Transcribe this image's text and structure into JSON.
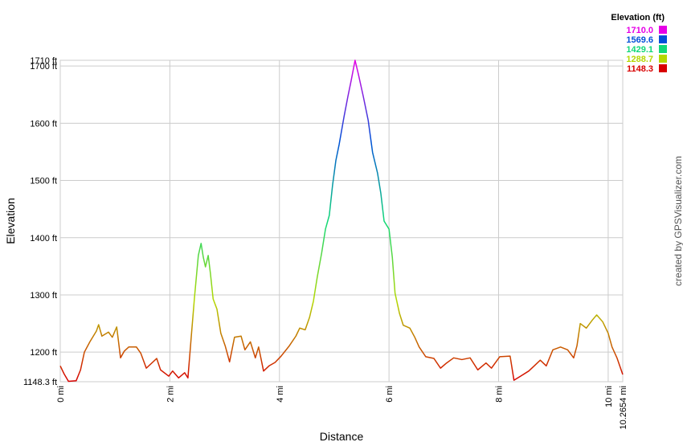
{
  "chart_data": {
    "type": "line",
    "x_label": "Distance",
    "y_label": "Elevation",
    "credit": "created by GPSVisualizer.com",
    "legend_title": "Elevation (ft)",
    "color_scale": [
      {
        "value": 1710.0,
        "label": "1710.0",
        "color": "#e600e6"
      },
      {
        "value": 1569.6,
        "label": "1569.6",
        "color": "#0050d8"
      },
      {
        "value": 1429.1,
        "label": "1429.1",
        "color": "#10d878"
      },
      {
        "value": 1288.7,
        "label": "1288.7",
        "color": "#b4d800"
      },
      {
        "value": 1148.3,
        "label": "1148.3",
        "color": "#d80000"
      }
    ],
    "xlim": [
      0,
      10.2654
    ],
    "ylim": [
      1148.3,
      1710
    ],
    "xticks": [
      {
        "value": 0,
        "label": "0 mi"
      },
      {
        "value": 2,
        "label": "2 mi"
      },
      {
        "value": 4,
        "label": "4 mi"
      },
      {
        "value": 6,
        "label": "6 mi"
      },
      {
        "value": 8,
        "label": "8 mi"
      },
      {
        "value": 10,
        "label": "10 mi"
      },
      {
        "value": 10.2654,
        "label": "10.2654 mi"
      }
    ],
    "yticks": [
      {
        "value": 1148.3,
        "label": "1148.3 ft"
      },
      {
        "value": 1200,
        "label": "1200 ft"
      },
      {
        "value": 1300,
        "label": "1300 ft"
      },
      {
        "value": 1400,
        "label": "1400 ft"
      },
      {
        "value": 1500,
        "label": "1500 ft"
      },
      {
        "value": 1600,
        "label": "1600 ft"
      },
      {
        "value": 1700,
        "label": "1700 ft"
      },
      {
        "value": 1710,
        "label": "1710 ft"
      }
    ],
    "grid": true,
    "series": [
      {
        "name": "Elevation",
        "x": [
          0,
          0.07,
          0.15,
          0.29,
          0.37,
          0.44,
          0.54,
          0.66,
          0.7,
          0.76,
          0.88,
          0.95,
          1.03,
          1.1,
          1.17,
          1.25,
          1.39,
          1.47,
          1.57,
          1.76,
          1.83,
          1.98,
          2.05,
          2.16,
          2.27,
          2.33,
          2.39,
          2.45,
          2.52,
          2.57,
          2.61,
          2.65,
          2.7,
          2.74,
          2.79,
          2.86,
          2.93,
          3.01,
          3.09,
          3.18,
          3.3,
          3.37,
          3.47,
          3.56,
          3.62,
          3.71,
          3.81,
          3.92,
          4.03,
          4.18,
          4.3,
          4.37,
          4.47,
          4.55,
          4.62,
          4.69,
          4.77,
          4.84,
          4.91,
          4.97,
          5.03,
          5.09,
          5.18,
          5.25,
          5.31,
          5.38,
          5.44,
          5.53,
          5.62,
          5.7,
          5.79,
          5.85,
          5.91,
          6.0,
          6.06,
          6.11,
          6.19,
          6.26,
          6.38,
          6.47,
          6.55,
          6.67,
          6.82,
          6.94,
          7.05,
          7.18,
          7.33,
          7.48,
          7.62,
          7.77,
          7.87,
          8.02,
          8.21,
          8.28,
          8.4,
          8.55,
          8.65,
          8.76,
          8.87,
          8.99,
          9.13,
          9.26,
          9.37,
          9.43,
          9.49,
          9.6,
          9.71,
          9.79,
          9.9,
          10.0,
          10.07,
          10.16,
          10.2654
        ],
        "values": [
          1176,
          1162,
          1149,
          1150,
          1169,
          1200,
          1218,
          1237,
          1248,
          1228,
          1235,
          1226,
          1244,
          1190,
          1202,
          1209,
          1209,
          1198,
          1172,
          1189,
          1169,
          1158,
          1167,
          1155,
          1164,
          1155,
          1226,
          1296,
          1369,
          1390,
          1366,
          1349,
          1369,
          1338,
          1293,
          1275,
          1233,
          1211,
          1183,
          1226,
          1228,
          1204,
          1218,
          1190,
          1209,
          1167,
          1176,
          1182,
          1193,
          1211,
          1228,
          1242,
          1239,
          1261,
          1289,
          1331,
          1373,
          1415,
          1439,
          1492,
          1535,
          1563,
          1612,
          1647,
          1675,
          1710,
          1686,
          1647,
          1605,
          1549,
          1513,
          1478,
          1429,
          1415,
          1366,
          1303,
          1268,
          1247,
          1242,
          1226,
          1209,
          1192,
          1189,
          1172,
          1181,
          1190,
          1187,
          1190,
          1169,
          1181,
          1172,
          1192,
          1193,
          1151,
          1158,
          1167,
          1176,
          1186,
          1176,
          1204,
          1209,
          1204,
          1190,
          1211,
          1250,
          1242,
          1256,
          1265,
          1253,
          1233,
          1209,
          1190,
          1161
        ]
      }
    ]
  }
}
